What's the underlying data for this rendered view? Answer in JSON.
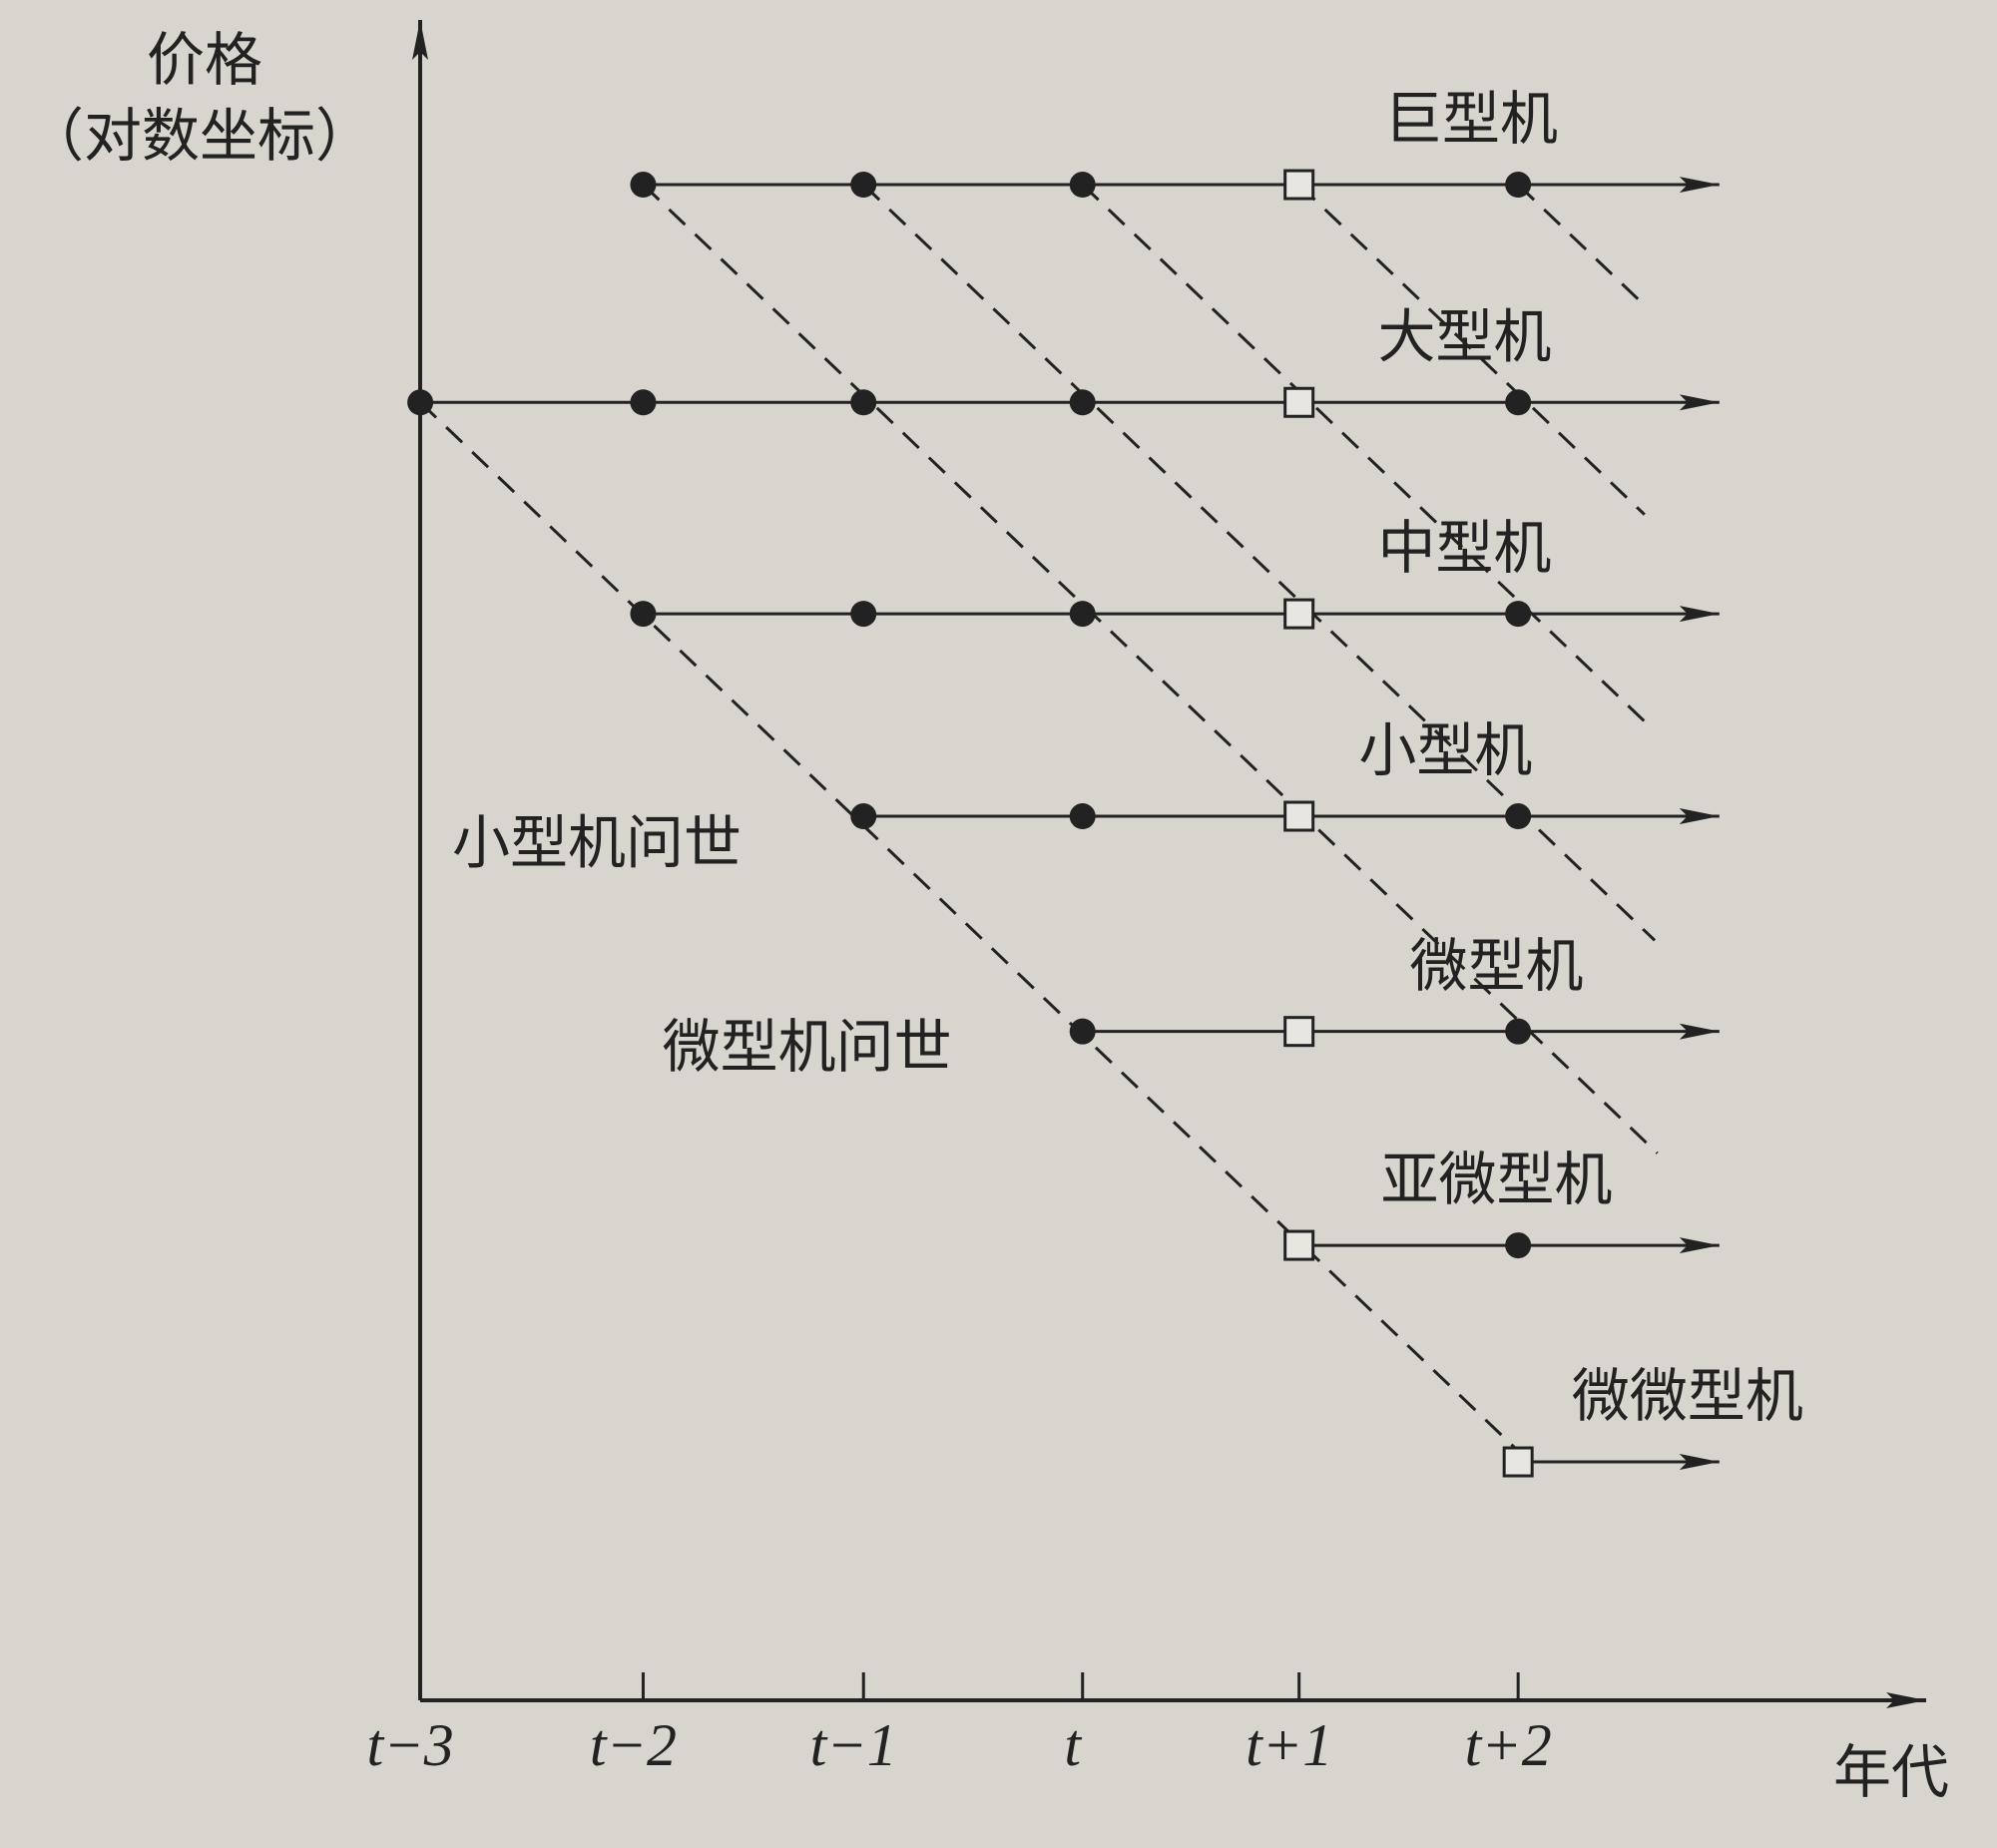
{
  "y_axis_label": {
    "line1": "价格",
    "line2": "（对数坐标）"
  },
  "x_axis_label": "年代",
  "x_ticks": [
    "t−3",
    "t−2",
    "t−1",
    "t",
    "t+1",
    "t+2"
  ],
  "rows": [
    {
      "label": "巨型机"
    },
    {
      "label": "大型机"
    },
    {
      "label": "中型机"
    },
    {
      "label": "小型机"
    },
    {
      "label": "微型机"
    },
    {
      "label": "亚微型机"
    },
    {
      "label": "微微型机"
    }
  ],
  "annotations": [
    "小型机问世",
    "微型机问世"
  ]
}
